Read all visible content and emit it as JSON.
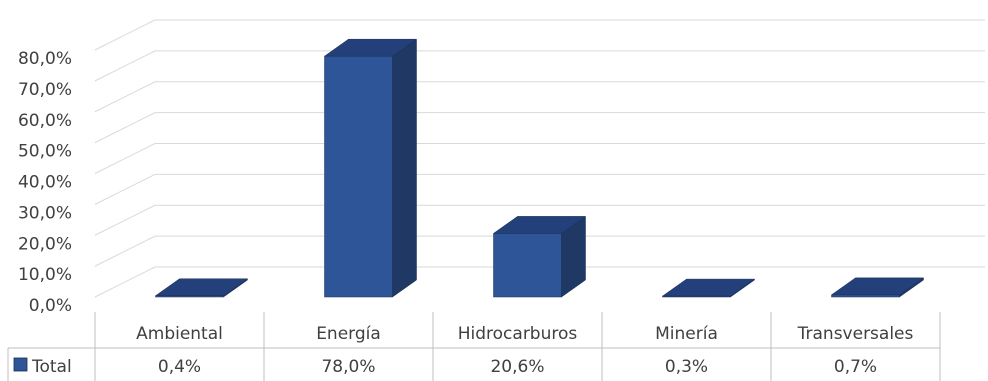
{
  "chart_data": {
    "type": "bar",
    "categories": [
      "Ambiental",
      "Energía",
      "Hidrocarburos",
      "Minería",
      "Transversales"
    ],
    "series": [
      {
        "name": "Total",
        "values": [
          0.4,
          78.0,
          20.6,
          0.3,
          0.7
        ],
        "labels": [
          "0,4%",
          "78,0%",
          "20,6%",
          "0,3%",
          "0,7%"
        ]
      }
    ],
    "ylim": [
      0,
      80
    ],
    "yticks": [
      "0,0%",
      "10,0%",
      "20,0%",
      "30,0%",
      "40,0%",
      "50,0%",
      "60,0%",
      "70,0%",
      "80,0%"
    ],
    "grid": true,
    "three_d": true,
    "data_table": true,
    "colors": {
      "front": "#2e5597",
      "side": "#1f3864",
      "top": "#24407a",
      "grid": "#d9d9d9",
      "table": "#bfbfbf"
    }
  }
}
